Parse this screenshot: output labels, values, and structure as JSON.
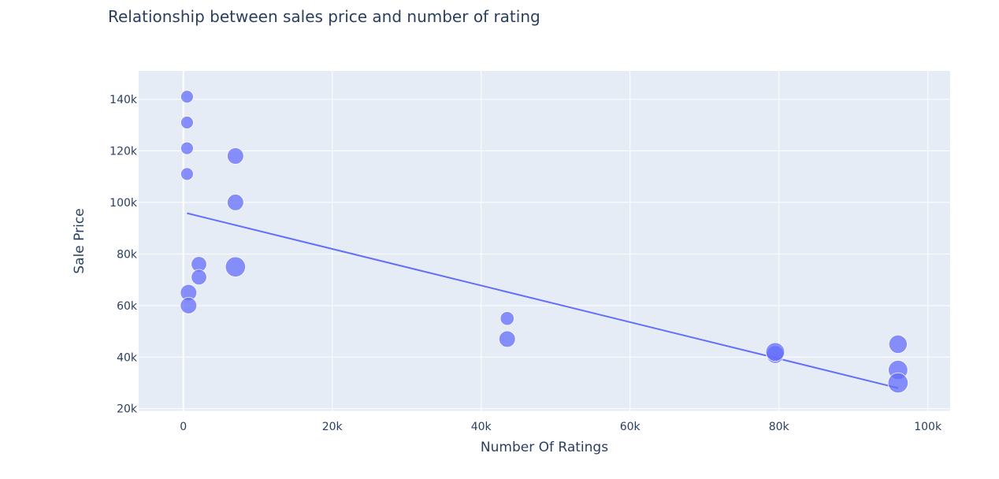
{
  "chart_data": {
    "type": "scatter",
    "title": "Relationship between sales price and number of rating",
    "xlabel": "Number Of Ratings",
    "ylabel": "Sale Price",
    "xlim": [
      -6000,
      103000
    ],
    "ylim": [
      19000,
      151000
    ],
    "x_ticks": [
      0,
      20000,
      40000,
      60000,
      80000,
      100000
    ],
    "x_tick_labels": [
      "0",
      "20k",
      "40k",
      "60k",
      "80k",
      "100k"
    ],
    "y_ticks": [
      20000,
      40000,
      60000,
      80000,
      100000,
      120000,
      140000
    ],
    "y_tick_labels": [
      "20k",
      "40k",
      "60k",
      "80k",
      "100k",
      "120k",
      "140k"
    ],
    "grid": true,
    "background_color": "#e5ecf6",
    "marker_color": "#636efa",
    "points": [
      {
        "x": 500,
        "y": 141000,
        "size": 1
      },
      {
        "x": 500,
        "y": 131000,
        "size": 1
      },
      {
        "x": 500,
        "y": 121000,
        "size": 1
      },
      {
        "x": 500,
        "y": 111000,
        "size": 1
      },
      {
        "x": 7000,
        "y": 118000,
        "size": 2
      },
      {
        "x": 7000,
        "y": 100000,
        "size": 2
      },
      {
        "x": 7000,
        "y": 75000,
        "size": 3
      },
      {
        "x": 2100,
        "y": 76000,
        "size": 1.5
      },
      {
        "x": 2100,
        "y": 71000,
        "size": 1.5
      },
      {
        "x": 700,
        "y": 65000,
        "size": 2
      },
      {
        "x": 700,
        "y": 60000,
        "size": 2
      },
      {
        "x": 43500,
        "y": 55000,
        "size": 1.2
      },
      {
        "x": 43500,
        "y": 47000,
        "size": 2
      },
      {
        "x": 79500,
        "y": 41000,
        "size": 2.3
      },
      {
        "x": 79500,
        "y": 42000,
        "size": 2.6
      },
      {
        "x": 96000,
        "y": 45000,
        "size": 2.5
      },
      {
        "x": 96000,
        "y": 35000,
        "size": 2.8
      },
      {
        "x": 96000,
        "y": 30000,
        "size": 3
      }
    ],
    "trendline": {
      "x": [
        500,
        96000
      ],
      "y": [
        95800,
        28000
      ]
    }
  }
}
